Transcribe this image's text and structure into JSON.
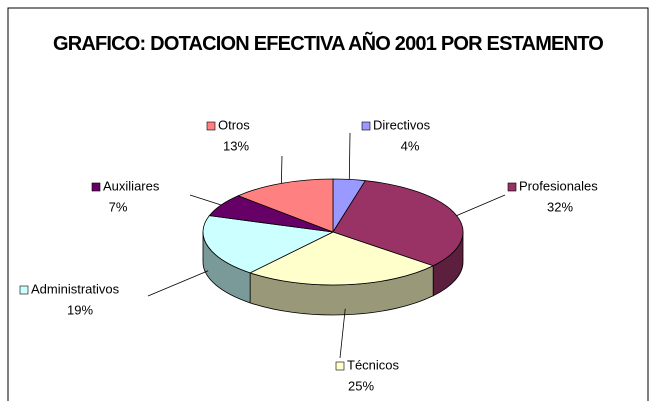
{
  "chart_data": {
    "type": "pie",
    "title": "GRAFICO: DOTACION EFECTIVA AÑO 2001 POR ESTAMENTO",
    "categories": [
      "Directivos",
      "Profesionales",
      "Técnicos",
      "Administrativos",
      "Auxiliares",
      "Otros"
    ],
    "values": [
      4,
      32,
      25,
      19,
      7,
      13
    ],
    "value_labels": [
      "4%",
      "32%",
      "25%",
      "19%",
      "7%",
      "13%"
    ],
    "colors": [
      "#9999ff",
      "#993366",
      "#ffffcc",
      "#ccffff",
      "#660066",
      "#ff8080"
    ]
  }
}
